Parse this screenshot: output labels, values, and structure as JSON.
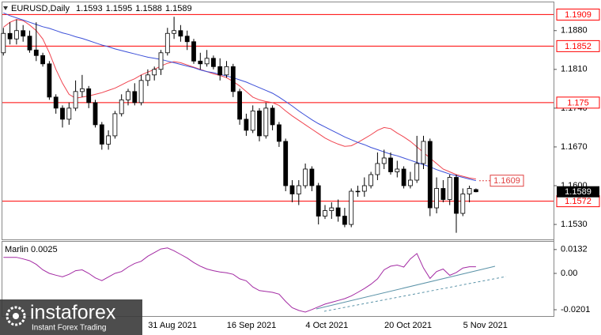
{
  "chart_data": [
    {
      "type": "candlestick",
      "title": "EURUSD,Daily",
      "categories": [
        null,
        null,
        null,
        null,
        null,
        null,
        null,
        null,
        null,
        null,
        null,
        null,
        null,
        null,
        null,
        null,
        null,
        null,
        null,
        null,
        null,
        null,
        null,
        "31 Aug 2021",
        null,
        null,
        null,
        null,
        null,
        null,
        null,
        null,
        null,
        null,
        null,
        "16 Sep 2021",
        null,
        null,
        null,
        null,
        null,
        null,
        null,
        null,
        null,
        null,
        null,
        "4 Oct 2021",
        null,
        null,
        null,
        null,
        null,
        null,
        null,
        null,
        null,
        null,
        null,
        "20 Oct 2021",
        null,
        null,
        null,
        null,
        null,
        null,
        null,
        null,
        null,
        null,
        null,
        "5 Nov 2021",
        null
      ],
      "open": [
        1.184,
        1.1875,
        1.1865,
        1.188,
        1.187,
        1.1845,
        1.1835,
        1.182,
        1.176,
        1.174,
        1.172,
        1.174,
        1.177,
        1.1775,
        1.175,
        1.171,
        1.1675,
        1.169,
        1.173,
        1.1755,
        1.177,
        1.175,
        1.179,
        1.18,
        1.181,
        1.184,
        1.1875,
        1.188,
        1.187,
        1.186,
        1.1825,
        1.182,
        1.183,
        1.1815,
        1.18,
        1.1815,
        1.177,
        1.172,
        1.17,
        1.1735,
        1.169,
        1.174,
        1.171,
        1.168,
        1.16,
        1.1585,
        1.16,
        1.163,
        1.16,
        1.1545,
        1.1555,
        1.156,
        1.1545,
        1.153,
        1.159,
        1.159,
        1.16,
        1.162,
        1.164,
        1.165,
        1.1625,
        1.163,
        1.16,
        1.161,
        1.164,
        1.168,
        1.156,
        1.1595,
        1.1575,
        1.1615,
        1.155,
        1.1585,
        1.1593
      ],
      "high": [
        1.1885,
        1.1895,
        1.19,
        1.189,
        1.188,
        1.1895,
        1.184,
        1.1825,
        1.1765,
        1.1745,
        1.175,
        1.179,
        1.18,
        1.178,
        1.1755,
        1.1715,
        1.17,
        1.1735,
        1.1765,
        1.1775,
        1.1785,
        1.18,
        1.181,
        1.1815,
        1.1845,
        1.1885,
        1.1905,
        1.189,
        1.188,
        1.1865,
        1.184,
        1.1845,
        1.1835,
        1.183,
        1.1825,
        1.182,
        1.1775,
        1.173,
        1.1745,
        1.174,
        1.175,
        1.1745,
        1.1715,
        1.1685,
        1.161,
        1.161,
        1.164,
        1.1635,
        1.1605,
        1.1565,
        1.157,
        1.1575,
        1.156,
        1.1595,
        1.16,
        1.1615,
        1.1625,
        1.166,
        1.1665,
        1.166,
        1.1645,
        1.1635,
        1.1625,
        1.169,
        1.169,
        1.1685,
        1.1615,
        1.161,
        1.162,
        1.162,
        1.1595,
        1.16,
        1.1595
      ],
      "low": [
        1.1835,
        1.1855,
        1.1855,
        1.186,
        1.184,
        1.1825,
        1.1815,
        1.1755,
        1.173,
        1.1705,
        1.171,
        1.1735,
        1.176,
        1.174,
        1.1705,
        1.1665,
        1.1665,
        1.1685,
        1.1725,
        1.1745,
        1.1745,
        1.1745,
        1.178,
        1.179,
        1.18,
        1.1835,
        1.1865,
        1.186,
        1.1845,
        1.182,
        1.181,
        1.1815,
        1.181,
        1.179,
        1.1795,
        1.176,
        1.171,
        1.169,
        1.1695,
        1.168,
        1.1685,
        1.17,
        1.167,
        1.159,
        1.157,
        1.1565,
        1.1595,
        1.159,
        1.153,
        1.154,
        1.154,
        1.1535,
        1.1525,
        1.1525,
        1.158,
        1.158,
        1.1595,
        1.161,
        1.163,
        1.162,
        1.1615,
        1.1595,
        1.1595,
        1.1605,
        1.163,
        1.1545,
        1.155,
        1.157,
        1.1565,
        1.1515,
        1.1545,
        1.157,
        1.1588
      ],
      "close": [
        1.1875,
        1.1865,
        1.188,
        1.187,
        1.1845,
        1.1835,
        1.182,
        1.176,
        1.174,
        1.172,
        1.174,
        1.177,
        1.1775,
        1.175,
        1.171,
        1.1675,
        1.169,
        1.173,
        1.1755,
        1.177,
        1.175,
        1.179,
        1.18,
        1.181,
        1.184,
        1.1875,
        1.188,
        1.187,
        1.186,
        1.1825,
        1.182,
        1.183,
        1.1815,
        1.18,
        1.1815,
        1.177,
        1.172,
        1.17,
        1.1735,
        1.169,
        1.174,
        1.171,
        1.168,
        1.16,
        1.1585,
        1.16,
        1.163,
        1.16,
        1.1545,
        1.1555,
        1.156,
        1.1545,
        1.153,
        1.159,
        1.159,
        1.16,
        1.162,
        1.164,
        1.165,
        1.1625,
        1.163,
        1.16,
        1.161,
        1.164,
        1.168,
        1.156,
        1.1595,
        1.1575,
        1.1615,
        1.155,
        1.1585,
        1.1595,
        1.1589
      ],
      "series": [
        {
          "color": "#f0444f",
          "values": [
            1.1886,
            1.1895,
            1.19,
            1.1898,
            1.189,
            1.188,
            1.1865,
            1.184,
            1.181,
            1.1785,
            1.1765,
            1.1758,
            1.176,
            1.1762,
            1.1765,
            1.1768,
            1.1772,
            1.1776,
            1.1782,
            1.1788,
            1.1793,
            1.18,
            1.1805,
            1.181,
            1.1816,
            1.1821,
            1.1824,
            1.1822,
            1.1818,
            1.1814,
            1.181,
            1.1806,
            1.1802,
            1.1799,
            1.1795,
            1.1788,
            1.178,
            1.177,
            1.176,
            1.1755,
            1.1752,
            1.175,
            1.1745,
            1.1735,
            1.1726,
            1.1718,
            1.171,
            1.1702,
            1.1694,
            1.1686,
            1.168,
            1.1675,
            1.1671,
            1.1672,
            1.1678,
            1.1685,
            1.1692,
            1.17,
            1.1705,
            1.1703,
            1.1695,
            1.1688,
            1.168,
            1.167,
            1.166,
            1.165,
            1.164,
            1.163,
            1.1625,
            1.162,
            1.1617,
            1.1614,
            1.1612
          ]
        },
        {
          "color": "#3b4fd8",
          "values": [
            1.1912,
            1.1907,
            1.1903,
            1.1899,
            1.1895,
            1.1891,
            1.1887,
            1.1884,
            1.188,
            1.1876,
            1.1873,
            1.1869,
            1.1866,
            1.1862,
            1.1858,
            1.1854,
            1.1851,
            1.1847,
            1.1844,
            1.1841,
            1.1838,
            1.1835,
            1.1832,
            1.183,
            1.1828,
            1.1825,
            1.1822,
            1.1819,
            1.1816,
            1.1813,
            1.1809,
            1.1806,
            1.1804,
            1.1801,
            1.1798,
            1.1795,
            1.1791,
            1.1787,
            1.1782,
            1.1777,
            1.1772,
            1.1767,
            1.176,
            1.1752,
            1.1744,
            1.1735,
            1.1727,
            1.1719,
            1.1712,
            1.1706,
            1.17,
            1.1694,
            1.1688,
            1.1683,
            1.1678,
            1.1674,
            1.1669,
            1.1665,
            1.1661,
            1.1657,
            1.1654,
            1.165,
            1.1646,
            1.1642,
            1.1638,
            1.1634,
            1.1629,
            1.1625,
            1.1621,
            1.1618,
            1.1615,
            1.1612,
            1.1609
          ]
        }
      ],
      "ylim": [
        1.1503,
        1.1931
      ],
      "yticks": [
        {
          "value": 1.188,
          "label": "1.1880"
        },
        {
          "value": 1.181,
          "label": "1.1810"
        },
        {
          "value": 1.174,
          "label": "1.1740"
        },
        {
          "value": 1.167,
          "label": "1.1670"
        },
        {
          "value": 1.16,
          "label": "1.1600"
        },
        {
          "value": 1.153,
          "label": "1.1530"
        }
      ],
      "levels": [
        1.1909,
        1.1852,
        1.175,
        1.1572
      ],
      "level_color": "#ff0000",
      "bull_color": "#ffffff",
      "bear_color": "#000000"
    },
    {
      "type": "line",
      "title": "Marlin 0.0025",
      "color": "#a32aa3",
      "values": [
        0.0089,
        0.0089,
        0.0089,
        0.008,
        0.007,
        0.005,
        0.002,
        0.0,
        -0.001,
        -0.0019,
        -0.0005,
        0.0015,
        0.002,
        0.0,
        -0.0025,
        -0.004,
        -0.002,
        0.0,
        0.001,
        0.0035,
        0.0055,
        0.0067,
        0.0095,
        0.0115,
        0.0135,
        0.0141,
        0.0125,
        0.0105,
        0.0085,
        0.006,
        0.004,
        0.0024,
        0.0015,
        0.0008,
        0.0003,
        -0.0005,
        -0.003,
        -0.0041,
        -0.0075,
        -0.0095,
        -0.01,
        -0.0105,
        -0.0115,
        -0.0155,
        -0.019,
        -0.0205,
        -0.0214,
        -0.02,
        -0.0185,
        -0.017,
        -0.016,
        -0.015,
        -0.014,
        -0.0125,
        -0.0105,
        -0.0084,
        -0.006,
        -0.003,
        0.002,
        0.004,
        0.0046,
        0.0035,
        0.008,
        0.011,
        0.003,
        -0.0028,
        0.001,
        0.0024,
        -0.0011,
        0.0005,
        0.003,
        0.0037,
        0.0037
      ],
      "ylim": [
        -0.0236,
        0.0175
      ],
      "yticks": [
        0.0132,
        {
          "value": 0,
          "label": "0.00"
        },
        -0.0201
      ]
    }
  ],
  "watermark": {
    "brand": "instaforex",
    "tagline": "Instant Forex Trading"
  }
}
